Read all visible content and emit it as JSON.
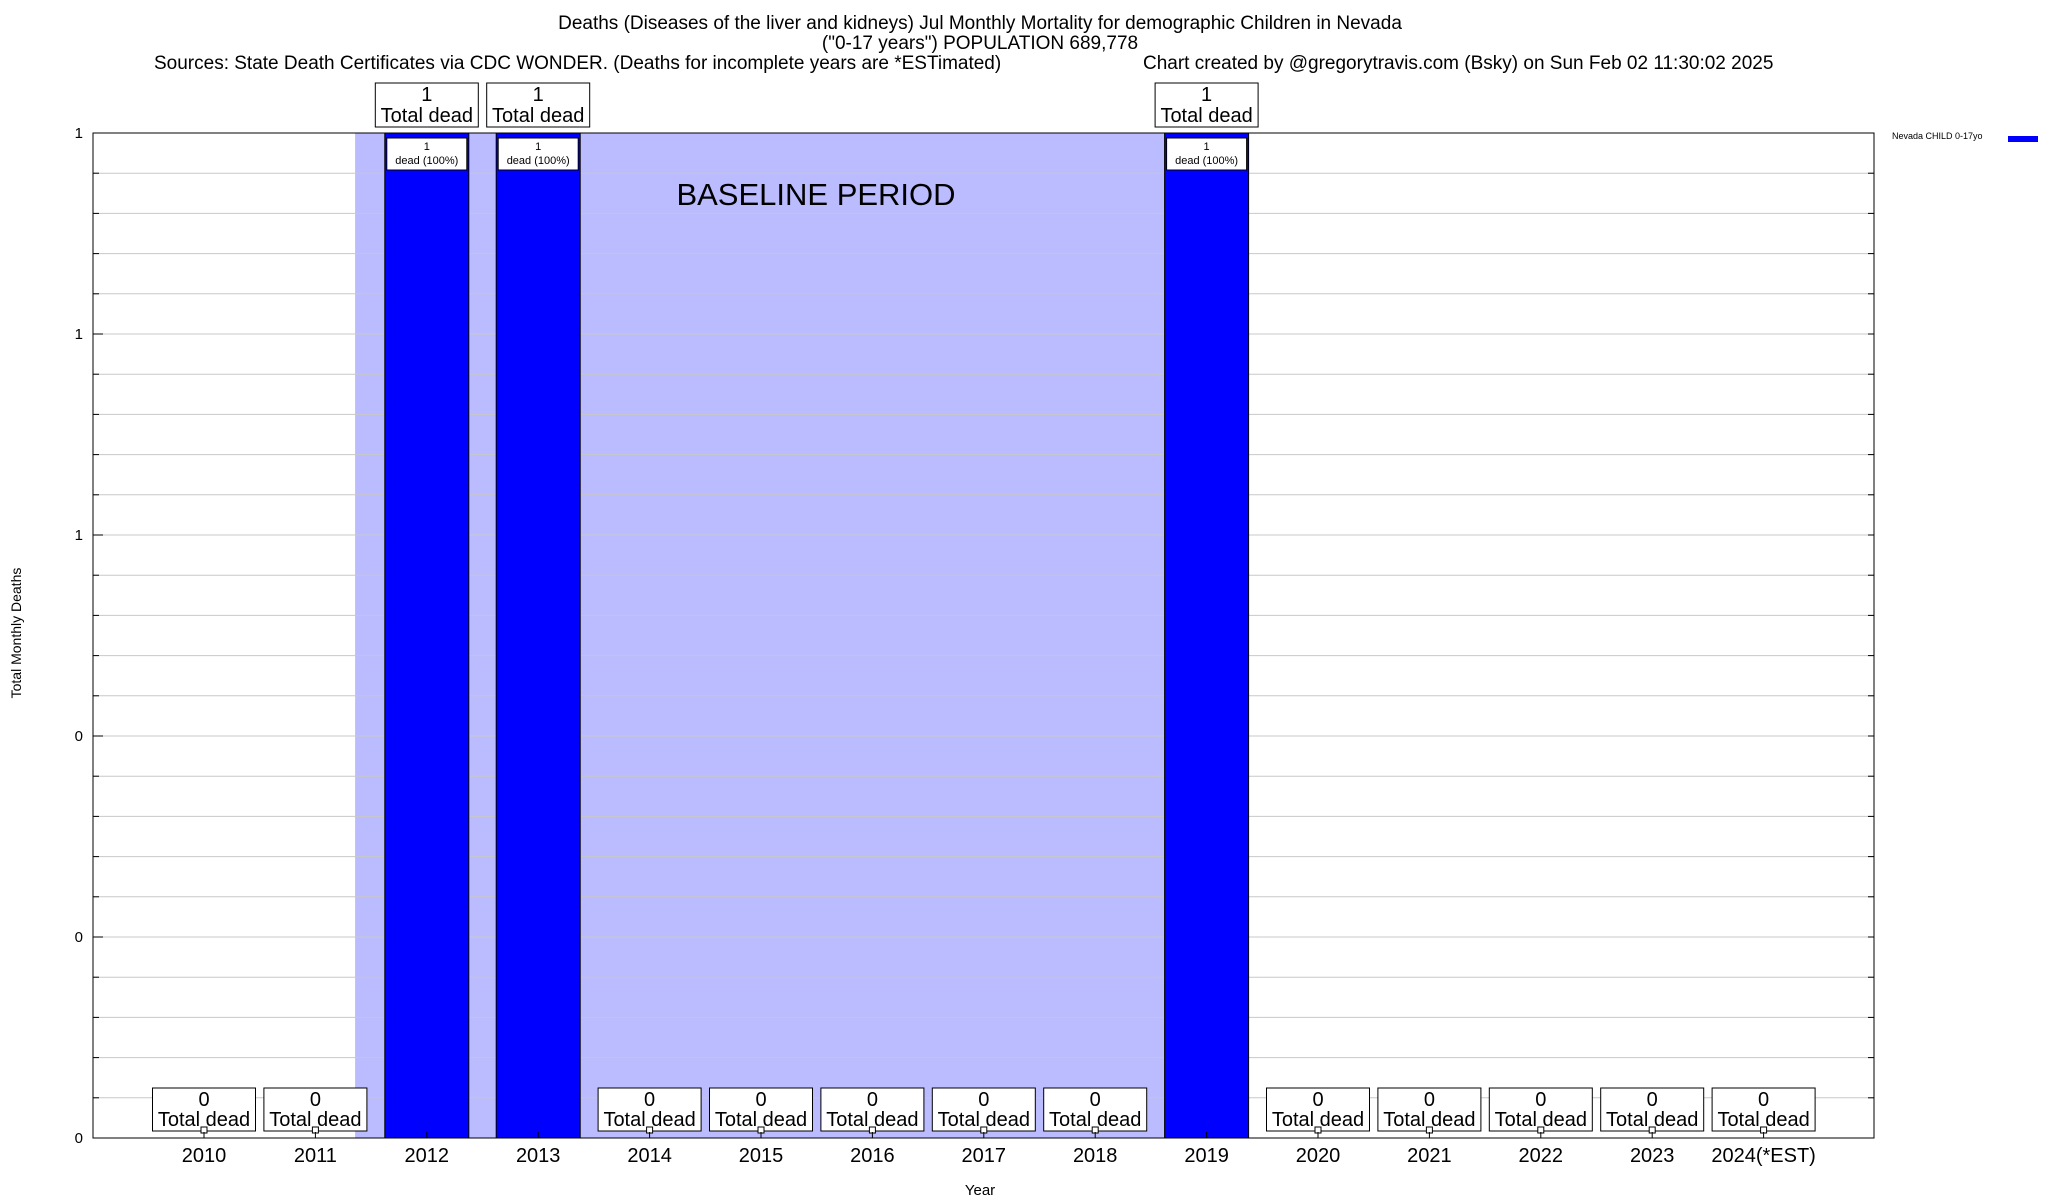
{
  "header": {
    "title_line1": "Deaths (Diseases of the liver and kidneys) Jul Monthly Mortality for demographic Children in Nevada",
    "title_line2": "(\"0-17 years\") POPULATION 689,778",
    "sources": "Sources: State Death Certificates via CDC WONDER. (Deaths for incomplete years are *ESTimated)",
    "credit": "Chart created by @gregorytravis.com (Bsky) on Sun Feb 02 11:30:02 2025"
  },
  "legend": {
    "label": "Nevada CHILD 0-17yo"
  },
  "chart_data": {
    "type": "bar",
    "title": "Deaths (Diseases of the liver and kidneys) Jul Monthly Mortality for demographic Children in Nevada",
    "xlabel": "Year",
    "ylabel": "Total Monthly Deaths",
    "categories": [
      "2010",
      "2011",
      "2012",
      "2013",
      "2014",
      "2015",
      "2016",
      "2017",
      "2018",
      "2019",
      "2020",
      "2021",
      "2022",
      "2023",
      "2024(*EST)"
    ],
    "series": [
      {
        "name": "Nevada CHILD 0-17yo",
        "values": [
          0,
          0,
          1,
          1,
          0,
          0,
          0,
          0,
          0,
          1,
          0,
          0,
          0,
          0,
          0
        ],
        "color": "#0000ff"
      }
    ],
    "ylim": [
      0,
      1
    ],
    "y_tick_values": [
      0,
      0.2,
      0.4,
      0.6,
      0.8,
      1
    ],
    "y_tick_labels": [
      "0",
      "0",
      "0",
      "1",
      "1",
      "1"
    ],
    "total_label_suffix": "Total dead",
    "bar_label_suffix": "dead (100%)",
    "baseline": {
      "label": "BASELINE PERIOD",
      "from": "2012",
      "to": "2019",
      "color": "#bbbbff"
    },
    "grid": true,
    "legend_position": "top-right"
  }
}
